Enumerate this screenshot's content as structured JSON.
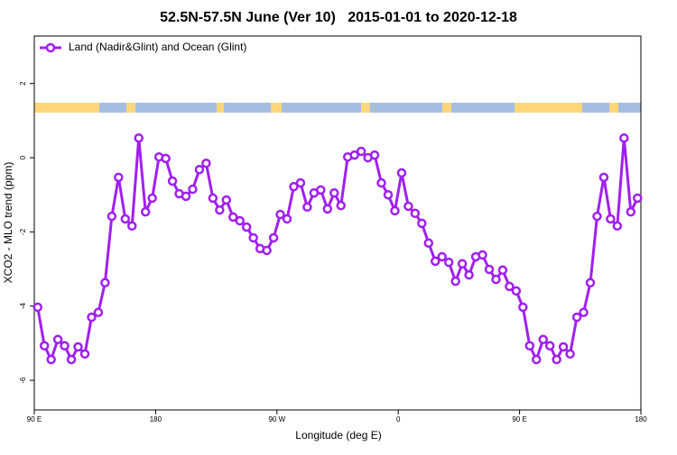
{
  "chart_data": {
    "type": "line",
    "title": "52.5N-57.5N June (Ver 10)   2015-01-01 to 2020-12-18",
    "x_label": "Longitude (deg E)",
    "y_label": "XCO2 - MLO trend (ppm)",
    "xlim": [
      90,
      540
    ],
    "ylim": [
      -6.8,
      3.28
    ],
    "xticks": [
      {
        "value": 90,
        "label": "90 E"
      },
      {
        "value": 180,
        "label": "180"
      },
      {
        "value": 270,
        "label": "90 W"
      },
      {
        "value": 360,
        "label": "0"
      },
      {
        "value": 450,
        "label": "90 E"
      },
      {
        "value": 540,
        "label": "180"
      }
    ],
    "yticks": [
      -6,
      -4,
      -2,
      0,
      2
    ],
    "legend": "top-left",
    "x": [
      92.5,
      97.5,
      102.5,
      107.5,
      112.5,
      117.5,
      122.5,
      127.5,
      132.5,
      137.5,
      142.5,
      147.5,
      152.5,
      157.5,
      162.5,
      167.5,
      172.5,
      177.5,
      182.5,
      187.5,
      192.5,
      197.5,
      202.5,
      207.5,
      212.5,
      217.5,
      222.5,
      227.5,
      232.5,
      237.5,
      242.5,
      247.5,
      252.5,
      257.5,
      262.5,
      267.5,
      272.5,
      277.5,
      282.5,
      287.5,
      292.5,
      297.5,
      302.5,
      307.5,
      312.5,
      317.5,
      322.5,
      327.5,
      332.5,
      337.5,
      342.5,
      347.5,
      352.5,
      357.5,
      362.5,
      367.5,
      372.5,
      377.5,
      382.5,
      387.5,
      392.5,
      397.5,
      402.5,
      407.5,
      412.5,
      417.5,
      422.5,
      427.5,
      432.5,
      437.5,
      442.5,
      447.5,
      452.5,
      457.5,
      462.5,
      467.5,
      472.5,
      477.5,
      482.5,
      487.5,
      492.5,
      497.5,
      502.5,
      507.5,
      512.5,
      517.5,
      522.5,
      527.5,
      532.5,
      537.5
    ],
    "series": [
      {
        "name": "Land (Nadir&Glint) and Ocean (Glint)",
        "color": "#a020f0",
        "values": [
          -4.03,
          -5.07,
          -5.44,
          -4.9,
          -5.07,
          -5.44,
          -5.1,
          -5.29,
          -4.3,
          -4.17,
          -3.37,
          -1.58,
          -0.53,
          -1.65,
          -1.84,
          0.53,
          -1.46,
          -1.09,
          0.02,
          -0.02,
          -0.63,
          -0.97,
          -1.04,
          -0.85,
          -0.32,
          -0.15,
          -1.09,
          -1.41,
          -1.14,
          -1.6,
          -1.7,
          -1.87,
          -2.16,
          -2.45,
          -2.5,
          -2.16,
          -1.53,
          -1.65,
          -0.78,
          -0.68,
          -1.33,
          -0.95,
          -0.87,
          -1.38,
          -0.95,
          -1.29,
          0.02,
          0.07,
          0.17,
          0,
          0.07,
          -0.68,
          -1.0,
          -1.43,
          -0.41,
          -1.31,
          -1.5,
          -1.77,
          -2.3,
          -2.79,
          -2.67,
          -2.82,
          -3.33,
          -2.86,
          -3.16,
          -2.67,
          -2.62,
          -3.01,
          -3.28,
          -3.03,
          -3.47,
          -3.59,
          -4.03,
          -5.07,
          -5.44,
          -4.9,
          -5.07,
          -5.44,
          -5.1,
          -5.29,
          -4.3,
          -4.17,
          -3.37,
          -1.58,
          -0.53,
          -1.65,
          -1.84,
          0.53,
          -1.46,
          -1.09
        ]
      }
    ]
  }
}
